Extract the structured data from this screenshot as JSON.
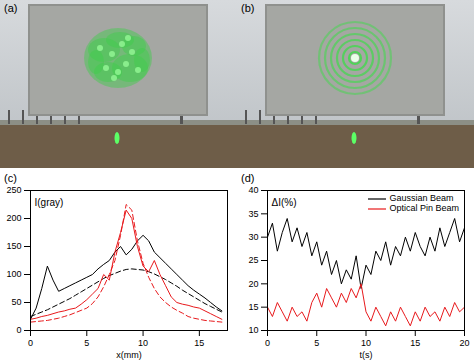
{
  "chart_data": [
    {
      "type": "image",
      "title": "(a)"
    },
    {
      "type": "image",
      "title": "(b)"
    },
    {
      "type": "line",
      "title": "(c)",
      "ylabel": "I(gray)",
      "xlabel": "x(mm)",
      "x": [
        0,
        0.5,
        1,
        1.5,
        2,
        2.5,
        3,
        3.5,
        4,
        4.5,
        5,
        5.5,
        6,
        6.5,
        7,
        7.5,
        8,
        8.5,
        9,
        9.5,
        10,
        10.5,
        11,
        11.5,
        12,
        12.5,
        13,
        13.5,
        14,
        14.5,
        15,
        15.5,
        16,
        16.5,
        17
      ],
      "series": [
        {
          "color": "#000000",
          "line_style": "solid",
          "values": [
            20,
            40,
            75,
            115,
            90,
            70,
            75,
            80,
            85,
            90,
            95,
            100,
            110,
            118,
            125,
            140,
            150,
            135,
            145,
            160,
            170,
            160,
            140,
            130,
            120,
            110,
            100,
            90,
            80,
            72,
            65,
            58,
            50,
            42,
            35
          ]
        },
        {
          "color": "#000000",
          "line_style": "dashed",
          "values": [
            25,
            29,
            33,
            37,
            42,
            47,
            52,
            57,
            63,
            69,
            75,
            81,
            87,
            93,
            98,
            102,
            106,
            109,
            110,
            109,
            108,
            105,
            101,
            96,
            91,
            85,
            79,
            72,
            66,
            60,
            54,
            48,
            43,
            38,
            33
          ]
        },
        {
          "color": "#e8191c",
          "line_style": "solid",
          "values": [
            20,
            22,
            25,
            27,
            30,
            33,
            35,
            38,
            40,
            47,
            55,
            65,
            75,
            100,
            90,
            140,
            175,
            215,
            200,
            150,
            115,
            105,
            125,
            100,
            80,
            60,
            50,
            47,
            45,
            42,
            40,
            35,
            30,
            25,
            20
          ]
        },
        {
          "color": "#e8191c",
          "line_style": "dashed",
          "values": [
            15,
            16,
            17,
            18,
            20,
            22,
            25,
            28,
            32,
            36,
            40,
            48,
            60,
            78,
            100,
            125,
            170,
            225,
            215,
            160,
            120,
            95,
            75,
            60,
            50,
            42,
            36,
            31,
            25,
            22,
            20,
            18,
            17,
            16,
            15
          ]
        }
      ],
      "xlim": [
        0,
        17.5
      ],
      "xticks": [
        0,
        5,
        10,
        15
      ],
      "ylim": [
        0,
        250
      ],
      "yticks": [
        0,
        50,
        100,
        150,
        200,
        250
      ],
      "grid": false
    },
    {
      "type": "line",
      "title": "(d)",
      "ylabel": "ΔI(%)",
      "xlabel": "t(s)",
      "x": [
        0,
        0.5,
        1,
        1.5,
        2,
        2.5,
        3,
        3.5,
        4,
        4.5,
        5,
        5.5,
        6,
        6.5,
        7,
        7.5,
        8,
        8.5,
        9,
        9.5,
        10,
        10.5,
        11,
        11.5,
        12,
        12.5,
        13,
        13.5,
        14,
        14.5,
        15,
        15.5,
        16,
        16.5,
        17,
        17.5,
        18,
        18.5,
        19,
        19.5,
        20
      ],
      "series": [
        {
          "name": "Gaussian Beam",
          "color": "#000000",
          "line_style": "solid",
          "values": [
            30,
            33,
            27,
            31,
            34,
            29,
            32,
            28,
            31,
            26,
            29,
            24,
            27,
            22,
            25,
            20,
            23,
            21,
            26,
            19,
            24,
            22,
            27,
            25,
            29,
            24,
            28,
            26,
            30,
            27,
            31,
            28,
            26,
            30,
            27,
            32,
            28,
            31,
            34,
            29,
            32
          ]
        },
        {
          "name": "Optical Pin Beam",
          "color": "#e8191c",
          "line_style": "solid",
          "values": [
            15,
            13,
            16,
            14,
            12,
            15,
            13,
            14,
            12,
            16,
            18,
            15,
            19,
            17,
            15,
            18,
            16,
            19,
            17,
            20,
            14,
            12,
            15,
            13,
            11,
            14,
            12,
            15,
            13,
            11,
            14,
            12,
            15,
            13,
            14,
            12,
            15,
            13,
            16,
            14,
            15
          ]
        }
      ],
      "xlim": [
        0,
        20
      ],
      "xticks": [
        0,
        5,
        10,
        15,
        20
      ],
      "ylim": [
        10,
        40
      ],
      "yticks": [
        10,
        15,
        20,
        25,
        30,
        35,
        40
      ],
      "grid": false,
      "legend": "top-right"
    }
  ]
}
